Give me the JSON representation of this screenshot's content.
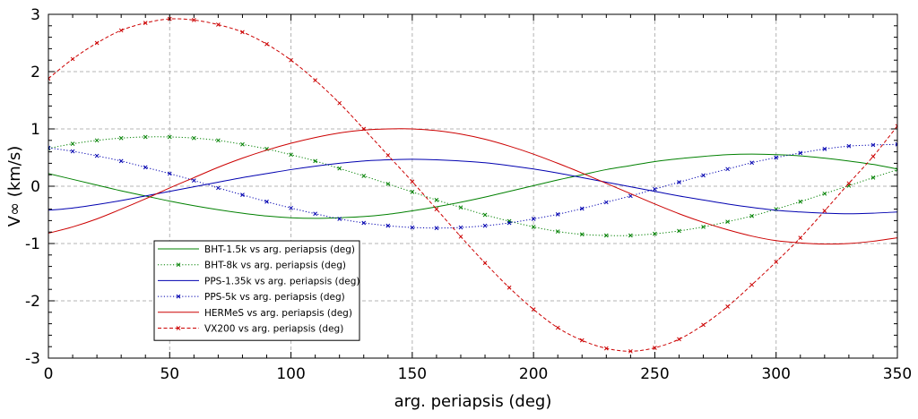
{
  "chart_data": {
    "type": "line",
    "xlabel": "arg. periapsis (deg)",
    "ylabel": "V∞ (km/s)",
    "xlim": [
      0,
      350
    ],
    "ylim": [
      -3,
      3
    ],
    "xticks": [
      0,
      50,
      100,
      150,
      200,
      250,
      300,
      350
    ],
    "xtick_labels": [
      "0",
      "50",
      "100",
      "150",
      "200",
      "250",
      "300",
      "350"
    ],
    "yticks": [
      -3,
      -2,
      -1,
      0,
      1,
      2,
      3
    ],
    "ytick_labels": [
      "-3",
      "-2",
      "-1",
      "0",
      "1",
      "2",
      "3"
    ],
    "grid": true,
    "legend_position": "lower-left",
    "x": [
      0,
      10,
      20,
      30,
      40,
      50,
      60,
      70,
      80,
      90,
      100,
      110,
      120,
      130,
      140,
      150,
      160,
      170,
      180,
      190,
      200,
      210,
      220,
      230,
      240,
      250,
      260,
      270,
      280,
      290,
      300,
      310,
      320,
      330,
      340,
      350
    ],
    "series": [
      {
        "name": "BHT-1.5k vs arg. periapsis (deg)",
        "color": "#008000",
        "dash": "solid",
        "marker": false,
        "values": [
          0.22,
          0.12,
          0.02,
          -0.08,
          -0.17,
          -0.26,
          -0.34,
          -0.41,
          -0.47,
          -0.52,
          -0.55,
          -0.56,
          -0.55,
          -0.53,
          -0.49,
          -0.43,
          -0.36,
          -0.28,
          -0.19,
          -0.09,
          0.01,
          0.11,
          0.2,
          0.29,
          0.36,
          0.43,
          0.48,
          0.52,
          0.55,
          0.56,
          0.55,
          0.53,
          0.49,
          0.44,
          0.38,
          0.3
        ]
      },
      {
        "name": "BHT-8k vs arg. periapsis (deg)",
        "color": "#008000",
        "dash": "dotted",
        "marker": true,
        "values": [
          0.66,
          0.74,
          0.8,
          0.84,
          0.86,
          0.86,
          0.84,
          0.8,
          0.73,
          0.65,
          0.55,
          0.44,
          0.31,
          0.18,
          0.04,
          -0.1,
          -0.24,
          -0.37,
          -0.5,
          -0.61,
          -0.71,
          -0.79,
          -0.84,
          -0.86,
          -0.86,
          -0.83,
          -0.78,
          -0.71,
          -0.62,
          -0.52,
          -0.4,
          -0.27,
          -0.13,
          0.01,
          0.15,
          0.29
        ]
      },
      {
        "name": "PPS-1.35k vs arg. periapsis (deg)",
        "color": "#0000b0",
        "dash": "solid",
        "marker": false,
        "values": [
          -0.42,
          -0.38,
          -0.32,
          -0.25,
          -0.17,
          -0.09,
          -0.01,
          0.07,
          0.15,
          0.22,
          0.29,
          0.35,
          0.4,
          0.44,
          0.46,
          0.47,
          0.46,
          0.44,
          0.41,
          0.36,
          0.3,
          0.23,
          0.15,
          0.07,
          -0.01,
          -0.09,
          -0.17,
          -0.24,
          -0.31,
          -0.37,
          -0.42,
          -0.45,
          -0.47,
          -0.48,
          -0.47,
          -0.45
        ]
      },
      {
        "name": "PPS-5k vs arg. periapsis (deg)",
        "color": "#0000b0",
        "dash": "dotted",
        "marker": true,
        "values": [
          0.67,
          0.61,
          0.53,
          0.44,
          0.33,
          0.22,
          0.1,
          -0.03,
          -0.15,
          -0.27,
          -0.38,
          -0.48,
          -0.57,
          -0.64,
          -0.69,
          -0.72,
          -0.73,
          -0.72,
          -0.69,
          -0.64,
          -0.57,
          -0.49,
          -0.39,
          -0.28,
          -0.17,
          -0.05,
          0.07,
          0.19,
          0.3,
          0.41,
          0.5,
          0.58,
          0.65,
          0.7,
          0.72,
          0.73
        ]
      },
      {
        "name": "HERMeS vs arg. periapsis (deg)",
        "color": "#cc0000",
        "dash": "solid",
        "marker": false,
        "values": [
          -0.82,
          -0.71,
          -0.57,
          -0.4,
          -0.22,
          -0.03,
          0.15,
          0.33,
          0.49,
          0.63,
          0.75,
          0.85,
          0.93,
          0.98,
          1.0,
          1.0,
          0.97,
          0.91,
          0.82,
          0.7,
          0.56,
          0.4,
          0.23,
          0.05,
          -0.13,
          -0.31,
          -0.48,
          -0.63,
          -0.76,
          -0.87,
          -0.95,
          -0.99,
          -1.01,
          -1.0,
          -0.96,
          -0.9
        ]
      },
      {
        "name": "VX200 vs arg. periapsis (deg)",
        "color": "#cc0000",
        "dash": "dashed",
        "marker": true,
        "values": [
          1.88,
          2.22,
          2.5,
          2.72,
          2.85,
          2.92,
          2.9,
          2.82,
          2.69,
          2.48,
          2.2,
          1.85,
          1.45,
          1.0,
          0.54,
          0.08,
          -0.4,
          -0.88,
          -1.34,
          -1.77,
          -2.15,
          -2.47,
          -2.69,
          -2.83,
          -2.88,
          -2.82,
          -2.67,
          -2.42,
          -2.1,
          -1.72,
          -1.32,
          -0.9,
          -0.43,
          0.05,
          0.52,
          1.05
        ]
      }
    ]
  }
}
